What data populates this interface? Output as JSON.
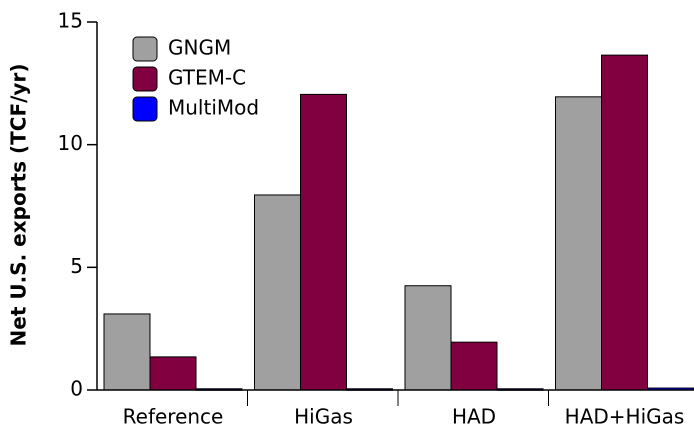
{
  "chart_data": {
    "type": "bar",
    "y_label": "Net U.S. exports (TCF/yr)",
    "categories": [
      "Reference",
      "HiGas",
      "HAD",
      "HAD+HiGas"
    ],
    "series": [
      {
        "name": "GNGM",
        "color": "#a0a0a0",
        "values": [
          3.1,
          7.95,
          4.25,
          11.95
        ]
      },
      {
        "name": "GTEM-C",
        "color": "#800040",
        "values": [
          1.35,
          12.05,
          1.95,
          13.65
        ]
      },
      {
        "name": "MultiMod",
        "color": "#0000ff",
        "values": [
          0.05,
          0.05,
          0.05,
          0.08
        ]
      }
    ],
    "ylim": [
      0,
      15
    ],
    "yticks": [
      0,
      5,
      10,
      15
    ],
    "legend": "upper left"
  }
}
